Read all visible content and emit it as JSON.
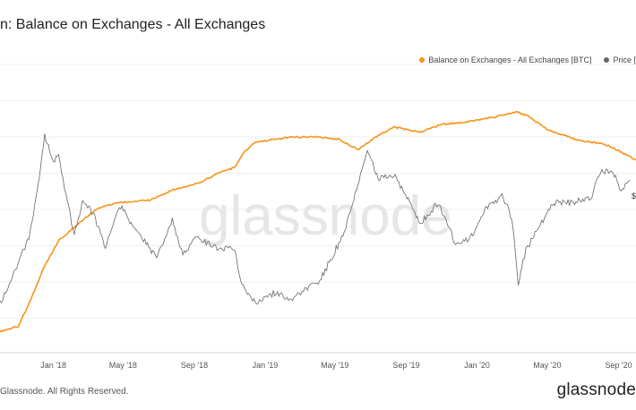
{
  "page": {
    "title": "n: Balance on Exchanges - All Exchanges",
    "copyright": "Glassnode. All Rights Reserved.",
    "logo": "glassnode",
    "watermark": "glassnode"
  },
  "legend": [
    {
      "label": "Balance on Exchanges - All Exchanges [BTC]",
      "color": "#f7931a"
    },
    {
      "label": "Price [",
      "color": "#666666"
    }
  ],
  "chart_data": {
    "type": "line",
    "x_ticks": [
      "Jan '18",
      "May '18",
      "Sep '18",
      "Jan '19",
      "May '19",
      "Sep '19",
      "Jan '20",
      "May '20",
      "Sep '20"
    ],
    "x_range": [
      "2017-10-01",
      "2020-10-01"
    ],
    "grid": true,
    "legend_placement": "top-right",
    "price_label": "$",
    "series": [
      {
        "name": "Balance on Exchanges - All Exchanges [BTC]",
        "color": "#f7931a",
        "axis": "left",
        "ylim": [
          0,
          100
        ],
        "points": [
          [
            "2017-10-01",
            7
          ],
          [
            "2017-11-01",
            9
          ],
          [
            "2017-11-20",
            18
          ],
          [
            "2017-12-15",
            32
          ],
          [
            "2018-01-10",
            43
          ],
          [
            "2018-02-15",
            50
          ],
          [
            "2018-03-20",
            56
          ],
          [
            "2018-04-25",
            58
          ],
          [
            "2018-06-15",
            59
          ],
          [
            "2018-07-25",
            63
          ],
          [
            "2018-09-10",
            66
          ],
          [
            "2018-10-15",
            70
          ],
          [
            "2018-11-10",
            72
          ],
          [
            "2018-11-25",
            78
          ],
          [
            "2018-12-15",
            82
          ],
          [
            "2019-02-15",
            84
          ],
          [
            "2019-04-01",
            84
          ],
          [
            "2019-05-10",
            83
          ],
          [
            "2019-06-10",
            79
          ],
          [
            "2019-07-10",
            84
          ],
          [
            "2019-08-10",
            88
          ],
          [
            "2019-09-25",
            86
          ],
          [
            "2019-11-01",
            89
          ],
          [
            "2019-12-15",
            90
          ],
          [
            "2020-02-01",
            92
          ],
          [
            "2020-03-10",
            94
          ],
          [
            "2020-04-01",
            92
          ],
          [
            "2020-05-01",
            87
          ],
          [
            "2020-06-20",
            83
          ],
          [
            "2020-08-10",
            81
          ],
          [
            "2020-09-15",
            77
          ],
          [
            "2020-10-01",
            75
          ]
        ]
      },
      {
        "name": "Price [",
        "color": "#666666",
        "axis": "right",
        "ylim": [
          0,
          100
        ],
        "points": [
          [
            "2017-10-01",
            18
          ],
          [
            "2017-10-25",
            30
          ],
          [
            "2017-11-20",
            44
          ],
          [
            "2017-12-05",
            63
          ],
          [
            "2017-12-17",
            85
          ],
          [
            "2017-12-30",
            75
          ],
          [
            "2018-01-10",
            76
          ],
          [
            "2018-01-25",
            58
          ],
          [
            "2018-02-06",
            46
          ],
          [
            "2018-02-20",
            58
          ],
          [
            "2018-03-10",
            54
          ],
          [
            "2018-04-01",
            40
          ],
          [
            "2018-04-25",
            57
          ],
          [
            "2018-05-15",
            50
          ],
          [
            "2018-06-10",
            42
          ],
          [
            "2018-06-28",
            36
          ],
          [
            "2018-07-25",
            51
          ],
          [
            "2018-08-12",
            38
          ],
          [
            "2018-09-05",
            44
          ],
          [
            "2018-10-10",
            40
          ],
          [
            "2018-11-10",
            40
          ],
          [
            "2018-11-20",
            26
          ],
          [
            "2018-12-15",
            18
          ],
          [
            "2019-01-15",
            22
          ],
          [
            "2019-02-15",
            20
          ],
          [
            "2019-04-05",
            27
          ],
          [
            "2019-05-15",
            45
          ],
          [
            "2019-06-26",
            78
          ],
          [
            "2019-07-15",
            68
          ],
          [
            "2019-08-15",
            68
          ],
          [
            "2019-09-25",
            50
          ],
          [
            "2019-10-26",
            58
          ],
          [
            "2019-11-25",
            42
          ],
          [
            "2019-12-20",
            44
          ],
          [
            "2020-01-15",
            55
          ],
          [
            "2020-02-13",
            61
          ],
          [
            "2020-03-01",
            52
          ],
          [
            "2020-03-12",
            26
          ],
          [
            "2020-03-25",
            39
          ],
          [
            "2020-05-10",
            58
          ],
          [
            "2020-06-15",
            58
          ],
          [
            "2020-07-15",
            60
          ],
          [
            "2020-08-01",
            70
          ],
          [
            "2020-08-20",
            71
          ],
          [
            "2020-09-05",
            63
          ],
          [
            "2020-09-20",
            67
          ]
        ]
      }
    ]
  }
}
